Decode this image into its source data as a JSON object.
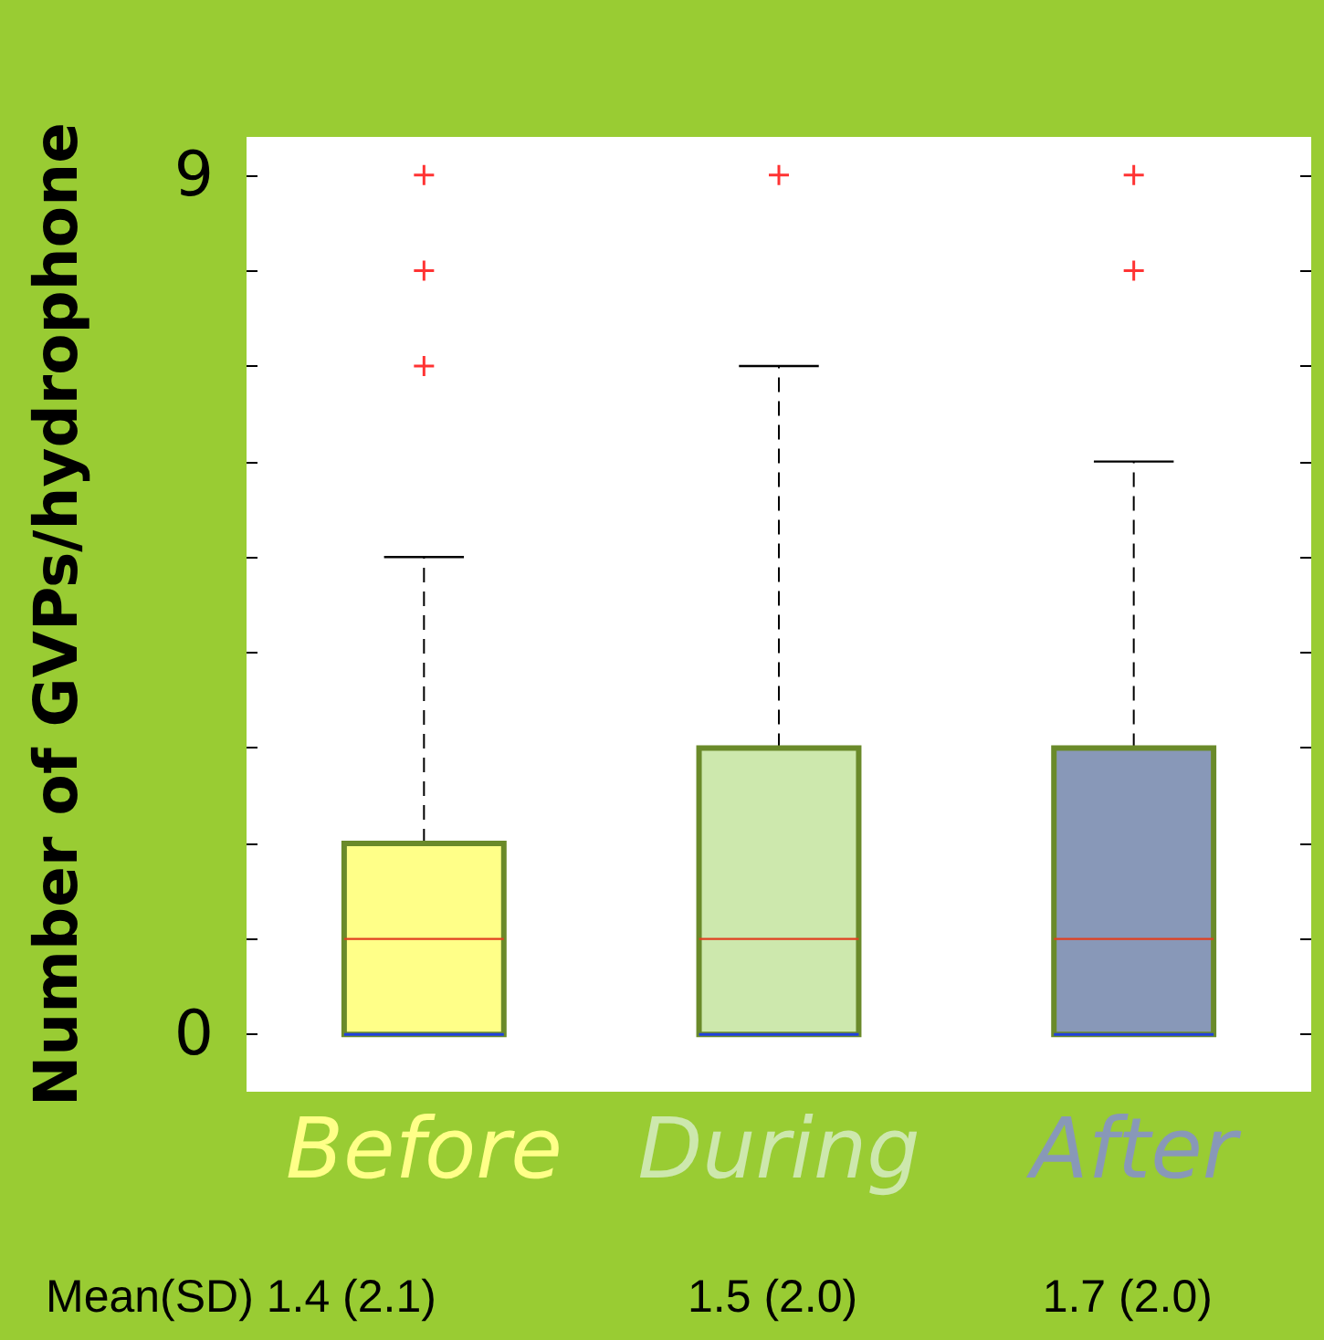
{
  "chart_data": {
    "type": "box",
    "ylabel": "Number of GVPs/hydrophone",
    "categories": [
      "Before",
      "During",
      "After"
    ],
    "colors": [
      "#ffff88",
      "#cde8ad",
      "#8898b8"
    ],
    "boxes": [
      {
        "low": 0,
        "q1": 0,
        "median": 1,
        "q3": 2,
        "high": 5,
        "outliers": [
          7,
          8,
          9
        ]
      },
      {
        "low": 0,
        "q1": 0,
        "median": 1,
        "q3": 3,
        "high": 7,
        "outliers": [
          9
        ]
      },
      {
        "low": 0,
        "q1": 0,
        "median": 1,
        "q3": 3,
        "high": 6,
        "outliers": [
          8,
          9
        ]
      }
    ],
    "ylim": [
      -0.6,
      9.4
    ],
    "yticks": [
      0,
      {
        "value": 1,
        "label": null
      },
      {
        "value": 2,
        "label": null
      },
      {
        "value": 3,
        "label": null
      },
      {
        "value": 4,
        "label": null
      },
      {
        "value": 5,
        "label": null
      },
      {
        "value": 6,
        "label": null
      },
      {
        "value": 7,
        "label": null
      },
      {
        "value": 8,
        "label": null
      },
      9
    ],
    "marker": "cross",
    "annotations": [
      "Mean(SD) 1.4 (2.1)",
      "1.5 (2.0)",
      "1.7 (2.0)"
    ]
  }
}
